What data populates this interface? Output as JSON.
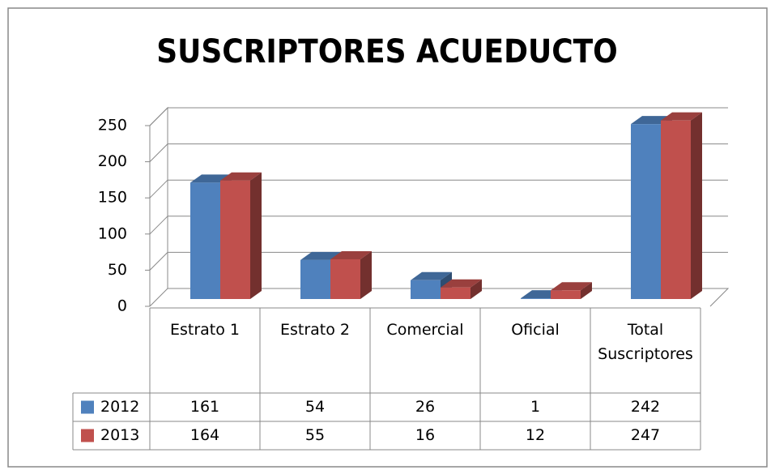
{
  "chart_data": {
    "type": "bar3d",
    "title": "SUSCRIPTORES ACUEDUCTO",
    "categories": [
      "Estrato 1",
      "Estrato 2",
      "Comercial",
      "Oficial",
      "Total Suscriptores"
    ],
    "series": [
      {
        "name": "2012",
        "color": "#4f81bd",
        "values": [
          161,
          54,
          26,
          1,
          242
        ]
      },
      {
        "name": "2013",
        "color": "#c0504d",
        "values": [
          164,
          55,
          16,
          12,
          247
        ]
      }
    ],
    "ylim": [
      0,
      250
    ],
    "yticks": [
      0,
      50,
      100,
      150,
      200,
      250
    ],
    "grid": true,
    "data_table": true
  }
}
